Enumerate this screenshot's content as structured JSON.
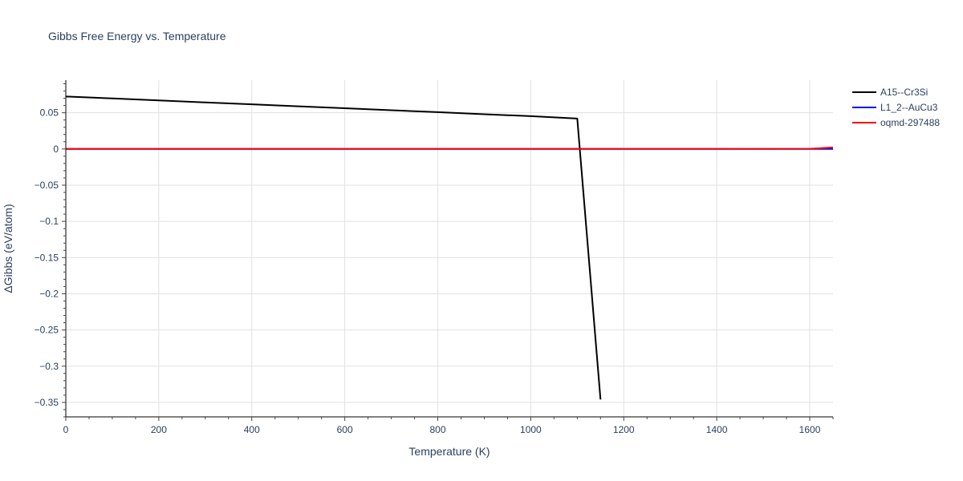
{
  "chart_data": {
    "type": "line",
    "title": "Gibbs Free Energy vs. Temperature",
    "xlabel": "Temperature (K)",
    "ylabel": "ΔGibbs (eV/atom)",
    "xlim": [
      0,
      1650
    ],
    "ylim": [
      -0.37,
      0.095
    ],
    "x_ticks": [
      0,
      200,
      400,
      600,
      800,
      1000,
      1200,
      1400,
      1600
    ],
    "x_tick_labels": [
      "0",
      "200",
      "400",
      "600",
      "800",
      "1000",
      "1200",
      "1400",
      "1600"
    ],
    "y_ticks": [
      0.05,
      0,
      -0.05,
      -0.1,
      -0.15,
      -0.2,
      -0.25,
      -0.3,
      -0.35
    ],
    "y_tick_labels": [
      "0.05",
      "0",
      "−0.05",
      "−0.1",
      "−0.15",
      "−0.2",
      "−0.25",
      "−0.3",
      "−0.35"
    ],
    "grid": true,
    "legend_position": "top-right",
    "series": [
      {
        "name": "A15--Cr3Si",
        "color": "#000000",
        "x": [
          0,
          100,
          200,
          300,
          400,
          500,
          600,
          700,
          800,
          900,
          1000,
          1100,
          1150
        ],
        "y": [
          0.0725,
          0.0698,
          0.0671,
          0.0643,
          0.0616,
          0.0589,
          0.0562,
          0.0535,
          0.0508,
          0.048,
          0.0453,
          0.042,
          -0.346
        ]
      },
      {
        "name": "L1_2--AuCu3",
        "color": "#0000ff",
        "x": [
          0,
          200,
          400,
          600,
          800,
          1000,
          1200,
          1400,
          1600,
          1650
        ],
        "y": [
          0,
          0,
          0,
          0,
          0,
          0,
          0,
          0,
          0,
          0
        ]
      },
      {
        "name": "oqmd-297488",
        "color": "#ff0000",
        "x": [
          0,
          200,
          400,
          600,
          800,
          1000,
          1200,
          1400,
          1600,
          1650
        ],
        "y": [
          0,
          0,
          0,
          0,
          0,
          0,
          0,
          0,
          0.0002,
          0.0022
        ]
      }
    ]
  }
}
